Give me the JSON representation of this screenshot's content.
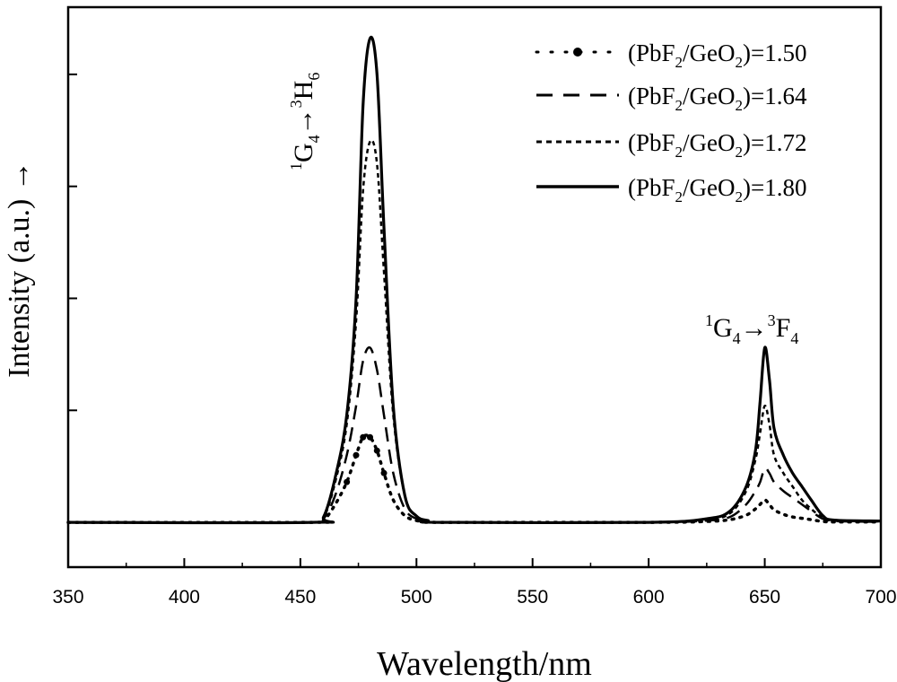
{
  "chart_data": {
    "type": "line",
    "xlabel": "Wavelength/nm",
    "ylabel": "Intensity (a.u.) →",
    "xlim": [
      350,
      700
    ],
    "ylim": [
      -0.1,
      1.15
    ],
    "x_ticks": [
      350,
      400,
      450,
      500,
      550,
      600,
      650,
      700
    ],
    "x_tick_labels": [
      "350",
      "400",
      "450",
      "500",
      "550",
      "600",
      "650",
      "700"
    ],
    "y_ticks": [
      0,
      0.25,
      0.5,
      0.75,
      1.0
    ],
    "grid": false,
    "legend_position": "top-right",
    "series": [
      {
        "name": "(PbF2/GeO2)=1.50",
        "legend_label": {
          "pre": "(PbF",
          "s1": "2",
          "mid": "/GeO",
          "s2": "2",
          "post": ")=1.50"
        },
        "style": "dotted-marker",
        "x": [
          350,
          455,
          460,
          465,
          470,
          474,
          477,
          480,
          483,
          486,
          490,
          495,
          500,
          505,
          510,
          600,
          625,
          635,
          642,
          646,
          648,
          650,
          652,
          654,
          658,
          662,
          666,
          670,
          675,
          680,
          700
        ],
        "y": [
          0,
          0,
          0.005,
          0.04,
          0.09,
          0.15,
          0.19,
          0.19,
          0.16,
          0.11,
          0.05,
          0.015,
          0.004,
          0.002,
          0,
          0,
          0.002,
          0.006,
          0.016,
          0.03,
          0.04,
          0.05,
          0.04,
          0.028,
          0.018,
          0.012,
          0.009,
          0.006,
          0.002,
          0.001,
          0.001
        ]
      },
      {
        "name": "(PbF2/GeO2)=1.64",
        "legend_label": {
          "pre": "(PbF",
          "s1": "2",
          "mid": "/GeO",
          "s2": "2",
          "post": ")=1.64"
        },
        "style": "dashed",
        "x": [
          350,
          455,
          460,
          465,
          470,
          474,
          477,
          480,
          483,
          486,
          490,
          495,
          500,
          505,
          510,
          600,
          625,
          635,
          642,
          646,
          648,
          650,
          652,
          654,
          658,
          662,
          666,
          670,
          675,
          680,
          700
        ],
        "y": [
          0,
          0,
          0.008,
          0.06,
          0.15,
          0.26,
          0.36,
          0.39,
          0.34,
          0.24,
          0.11,
          0.03,
          0.008,
          0.003,
          0,
          0,
          0.004,
          0.012,
          0.04,
          0.07,
          0.09,
          0.12,
          0.11,
          0.09,
          0.07,
          0.055,
          0.04,
          0.025,
          0.008,
          0.003,
          0.001
        ]
      },
      {
        "name": "(PbF2/GeO2)=1.72",
        "legend_label": {
          "pre": "(PbF",
          "s1": "2",
          "mid": "/GeO",
          "s2": "2",
          "post": ")=1.72"
        },
        "style": "short-dashed",
        "x": [
          350,
          455,
          460,
          465,
          470,
          474,
          477,
          480,
          483,
          486,
          490,
          495,
          500,
          505,
          510,
          600,
          625,
          635,
          642,
          646,
          648,
          650,
          652,
          654,
          658,
          662,
          666,
          670,
          675,
          680,
          700
        ],
        "y": [
          0,
          0,
          0.01,
          0.09,
          0.22,
          0.45,
          0.74,
          0.85,
          0.8,
          0.56,
          0.24,
          0.06,
          0.014,
          0.004,
          0,
          0,
          0.006,
          0.02,
          0.07,
          0.14,
          0.2,
          0.26,
          0.22,
          0.15,
          0.11,
          0.08,
          0.05,
          0.03,
          0.01,
          0.004,
          0.002
        ]
      },
      {
        "name": "(PbF2/GeO2)=1.80",
        "legend_label": {
          "pre": "(PbF",
          "s1": "2",
          "mid": "/GeO",
          "s2": "2",
          "post": ")=1.80"
        },
        "style": "solid",
        "x": [
          350,
          455,
          460,
          465,
          470,
          474,
          477,
          480,
          483,
          486,
          490,
          495,
          500,
          505,
          510,
          600,
          625,
          635,
          642,
          646,
          648,
          650,
          652,
          654,
          658,
          662,
          666,
          670,
          675,
          680,
          700
        ],
        "y": [
          0,
          0,
          0.012,
          0.1,
          0.24,
          0.5,
          0.93,
          1.08,
          1.0,
          0.66,
          0.26,
          0.06,
          0.014,
          0.004,
          0,
          0,
          0.008,
          0.025,
          0.08,
          0.16,
          0.27,
          0.39,
          0.32,
          0.21,
          0.15,
          0.11,
          0.08,
          0.05,
          0.015,
          0.005,
          0.003
        ]
      }
    ],
    "annotations": [
      {
        "name": "peak-1",
        "text": {
          "a": "1",
          "b": "G",
          "c": "4",
          "d": "→",
          "e": "3",
          "f": "H",
          "g": "6"
        },
        "orientation": "vertical"
      },
      {
        "name": "peak-2",
        "text": {
          "a": "1",
          "b": "G",
          "c": "4",
          "d": "→",
          "e": "3",
          "f": "F",
          "g": "4"
        },
        "orientation": "horizontal"
      }
    ]
  }
}
